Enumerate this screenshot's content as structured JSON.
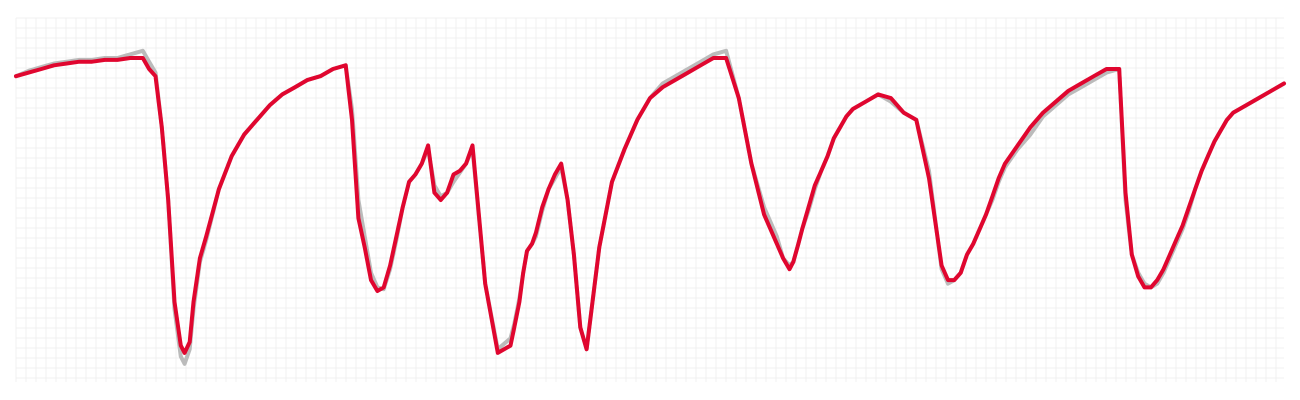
{
  "chart_data": {
    "type": "line",
    "title": "",
    "xlabel": "",
    "ylabel": "",
    "grid": true,
    "legend": "none",
    "xlim": [
      0,
      1
    ],
    "ylim": [
      0,
      1
    ],
    "series": [
      {
        "color": "#bbbbbb",
        "x": [
          0,
          0.01,
          0.02,
          0.03,
          0.04,
          0.05,
          0.06,
          0.07,
          0.08,
          0.09,
          0.1,
          0.105,
          0.11,
          0.115,
          0.12,
          0.125,
          0.13,
          0.133,
          0.137,
          0.14,
          0.145,
          0.15,
          0.16,
          0.17,
          0.18,
          0.19,
          0.2,
          0.21,
          0.22,
          0.23,
          0.24,
          0.25,
          0.26,
          0.265,
          0.27,
          0.275,
          0.28,
          0.285,
          0.29,
          0.295,
          0.3,
          0.305,
          0.31,
          0.315,
          0.32,
          0.325,
          0.33,
          0.335,
          0.34,
          0.345,
          0.35,
          0.355,
          0.36,
          0.37,
          0.38,
          0.39,
          0.393,
          0.397,
          0.4,
          0.403,
          0.407,
          0.41,
          0.415,
          0.42,
          0.425,
          0.43,
          0.435,
          0.44,
          0.445,
          0.45,
          0.46,
          0.47,
          0.48,
          0.49,
          0.5,
          0.51,
          0.52,
          0.53,
          0.54,
          0.55,
          0.56,
          0.57,
          0.58,
          0.59,
          0.6,
          0.605,
          0.61,
          0.613,
          0.617,
          0.62,
          0.625,
          0.63,
          0.635,
          0.64,
          0.645,
          0.65,
          0.655,
          0.66,
          0.665,
          0.67,
          0.68,
          0.69,
          0.7,
          0.71,
          0.72,
          0.73,
          0.735,
          0.74,
          0.745,
          0.75,
          0.755,
          0.76,
          0.765,
          0.77,
          0.775,
          0.78,
          0.79,
          0.8,
          0.81,
          0.82,
          0.83,
          0.84,
          0.85,
          0.86,
          0.87,
          0.875,
          0.88,
          0.885,
          0.89,
          0.895,
          0.9,
          0.905,
          0.91,
          0.915,
          0.92,
          0.925,
          0.93,
          0.935,
          0.94,
          0.945,
          0.95,
          0.955,
          0.96,
          0.97,
          0.98,
          0.99,
          1.0
        ],
        "y": [
          0.84,
          0.855,
          0.865,
          0.875,
          0.88,
          0.885,
          0.885,
          0.89,
          0.89,
          0.9,
          0.91,
          0.88,
          0.85,
          0.7,
          0.5,
          0.2,
          0.07,
          0.05,
          0.09,
          0.2,
          0.33,
          0.39,
          0.53,
          0.62,
          0.68,
          0.72,
          0.76,
          0.79,
          0.81,
          0.83,
          0.84,
          0.86,
          0.87,
          0.75,
          0.5,
          0.4,
          0.3,
          0.26,
          0.255,
          0.31,
          0.39,
          0.48,
          0.55,
          0.57,
          0.6,
          0.64,
          0.54,
          0.51,
          0.52,
          0.55,
          0.575,
          0.6,
          0.64,
          0.27,
          0.09,
          0.12,
          0.16,
          0.23,
          0.3,
          0.36,
          0.38,
          0.4,
          0.47,
          0.53,
          0.56,
          0.59,
          0.5,
          0.35,
          0.15,
          0.09,
          0.37,
          0.55,
          0.64,
          0.72,
          0.78,
          0.82,
          0.84,
          0.86,
          0.88,
          0.9,
          0.91,
          0.78,
          0.6,
          0.48,
          0.4,
          0.34,
          0.32,
          0.33,
          0.38,
          0.42,
          0.47,
          0.53,
          0.58,
          0.62,
          0.67,
          0.7,
          0.73,
          0.75,
          0.76,
          0.77,
          0.79,
          0.77,
          0.74,
          0.72,
          0.58,
          0.31,
          0.27,
          0.28,
          0.3,
          0.35,
          0.38,
          0.42,
          0.46,
          0.5,
          0.55,
          0.59,
          0.64,
          0.68,
          0.73,
          0.76,
          0.79,
          0.81,
          0.83,
          0.85,
          0.86,
          0.5,
          0.35,
          0.3,
          0.27,
          0.26,
          0.27,
          0.3,
          0.34,
          0.38,
          0.42,
          0.47,
          0.53,
          0.58,
          0.62,
          0.66,
          0.69,
          0.72,
          0.74,
          0.76,
          0.78,
          0.8,
          0.82
        ]
      },
      {
        "color": "#e0062f",
        "x": [
          0,
          0.01,
          0.02,
          0.03,
          0.04,
          0.05,
          0.06,
          0.07,
          0.08,
          0.09,
          0.1,
          0.105,
          0.11,
          0.115,
          0.12,
          0.125,
          0.13,
          0.133,
          0.137,
          0.14,
          0.145,
          0.15,
          0.16,
          0.17,
          0.18,
          0.19,
          0.2,
          0.21,
          0.22,
          0.23,
          0.24,
          0.25,
          0.26,
          0.265,
          0.27,
          0.275,
          0.28,
          0.285,
          0.29,
          0.295,
          0.3,
          0.305,
          0.31,
          0.315,
          0.32,
          0.325,
          0.33,
          0.335,
          0.34,
          0.345,
          0.35,
          0.355,
          0.36,
          0.37,
          0.38,
          0.39,
          0.393,
          0.397,
          0.4,
          0.403,
          0.407,
          0.41,
          0.415,
          0.42,
          0.425,
          0.43,
          0.435,
          0.44,
          0.445,
          0.45,
          0.46,
          0.47,
          0.48,
          0.49,
          0.5,
          0.51,
          0.52,
          0.53,
          0.54,
          0.55,
          0.56,
          0.57,
          0.58,
          0.59,
          0.6,
          0.605,
          0.61,
          0.613,
          0.617,
          0.62,
          0.625,
          0.63,
          0.635,
          0.64,
          0.645,
          0.65,
          0.655,
          0.66,
          0.665,
          0.67,
          0.68,
          0.69,
          0.7,
          0.71,
          0.72,
          0.73,
          0.735,
          0.74,
          0.745,
          0.75,
          0.755,
          0.76,
          0.765,
          0.77,
          0.775,
          0.78,
          0.79,
          0.8,
          0.81,
          0.82,
          0.83,
          0.84,
          0.85,
          0.86,
          0.87,
          0.875,
          0.88,
          0.885,
          0.89,
          0.895,
          0.9,
          0.905,
          0.91,
          0.915,
          0.92,
          0.925,
          0.93,
          0.935,
          0.94,
          0.945,
          0.95,
          0.955,
          0.96,
          0.97,
          0.98,
          0.99,
          1.0
        ],
        "y": [
          0.84,
          0.85,
          0.86,
          0.87,
          0.875,
          0.88,
          0.88,
          0.885,
          0.885,
          0.89,
          0.89,
          0.86,
          0.84,
          0.7,
          0.5,
          0.22,
          0.1,
          0.08,
          0.11,
          0.22,
          0.34,
          0.4,
          0.53,
          0.62,
          0.68,
          0.72,
          0.76,
          0.79,
          0.81,
          0.83,
          0.84,
          0.86,
          0.87,
          0.72,
          0.45,
          0.37,
          0.28,
          0.25,
          0.26,
          0.32,
          0.4,
          0.48,
          0.55,
          0.57,
          0.6,
          0.65,
          0.52,
          0.5,
          0.52,
          0.57,
          0.58,
          0.6,
          0.65,
          0.27,
          0.08,
          0.1,
          0.15,
          0.22,
          0.3,
          0.36,
          0.38,
          0.41,
          0.48,
          0.53,
          0.57,
          0.6,
          0.5,
          0.35,
          0.15,
          0.09,
          0.37,
          0.55,
          0.64,
          0.72,
          0.78,
          0.81,
          0.83,
          0.85,
          0.87,
          0.89,
          0.89,
          0.78,
          0.6,
          0.46,
          0.38,
          0.34,
          0.31,
          0.33,
          0.38,
          0.42,
          0.48,
          0.54,
          0.58,
          0.62,
          0.67,
          0.7,
          0.73,
          0.75,
          0.76,
          0.77,
          0.79,
          0.78,
          0.74,
          0.72,
          0.56,
          0.32,
          0.28,
          0.28,
          0.3,
          0.35,
          0.38,
          0.42,
          0.46,
          0.51,
          0.56,
          0.6,
          0.65,
          0.7,
          0.74,
          0.77,
          0.8,
          0.82,
          0.84,
          0.86,
          0.86,
          0.52,
          0.35,
          0.29,
          0.26,
          0.26,
          0.28,
          0.31,
          0.35,
          0.39,
          0.43,
          0.48,
          0.53,
          0.58,
          0.62,
          0.66,
          0.69,
          0.72,
          0.74,
          0.76,
          0.78,
          0.8,
          0.82
        ]
      }
    ]
  }
}
